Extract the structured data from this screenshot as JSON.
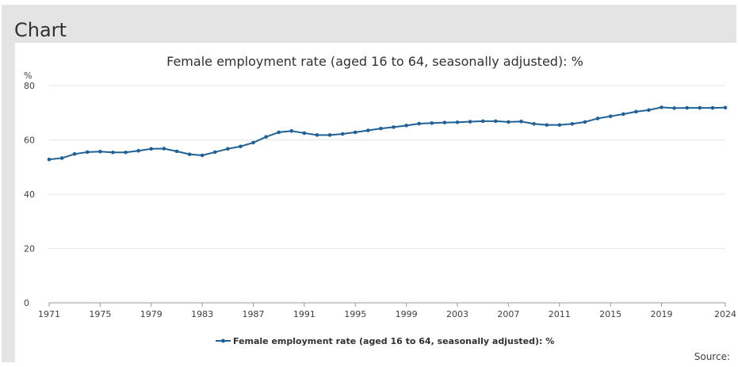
{
  "panel": {
    "heading": "Chart"
  },
  "chart_data": {
    "type": "line",
    "title": "Female employment rate (aged 16 to 64, seasonally adjusted): %",
    "ylabel": "%",
    "xlabel": "",
    "ylim": [
      0,
      80
    ],
    "yticks": [
      0,
      20,
      40,
      60,
      80
    ],
    "xlim": [
      1971,
      2024
    ],
    "xticks": [
      1971,
      1975,
      1979,
      1983,
      1987,
      1991,
      1995,
      1999,
      2003,
      2007,
      2011,
      2015,
      2019,
      2024
    ],
    "grid": true,
    "legend": "bottom-center",
    "series": [
      {
        "name": "Female employment rate (aged 16 to 64, seasonally adjusted): %",
        "color": "#206095",
        "x": [
          1971,
          1972,
          1973,
          1974,
          1975,
          1976,
          1977,
          1978,
          1979,
          1980,
          1981,
          1982,
          1983,
          1984,
          1985,
          1986,
          1987,
          1988,
          1989,
          1990,
          1991,
          1992,
          1993,
          1994,
          1995,
          1996,
          1997,
          1998,
          1999,
          2000,
          2001,
          2002,
          2003,
          2004,
          2005,
          2006,
          2007,
          2008,
          2009,
          2010,
          2011,
          2012,
          2013,
          2014,
          2015,
          2016,
          2017,
          2018,
          2019,
          2020,
          2021,
          2022,
          2023,
          2024
        ],
        "values": [
          52.8,
          53.3,
          54.8,
          55.5,
          55.7,
          55.4,
          55.4,
          56.0,
          56.7,
          56.8,
          55.8,
          54.7,
          54.3,
          55.5,
          56.7,
          57.6,
          59.0,
          61.1,
          62.8,
          63.3,
          62.5,
          61.8,
          61.8,
          62.2,
          62.8,
          63.5,
          64.2,
          64.7,
          65.3,
          66.0,
          66.2,
          66.4,
          66.5,
          66.7,
          66.9,
          66.9,
          66.6,
          66.8,
          65.9,
          65.5,
          65.5,
          65.9,
          66.6,
          67.9,
          68.7,
          69.5,
          70.4,
          71.0,
          72.0,
          71.7,
          71.8,
          71.8,
          71.8,
          71.9
        ]
      }
    ]
  },
  "source_label": "Source:"
}
